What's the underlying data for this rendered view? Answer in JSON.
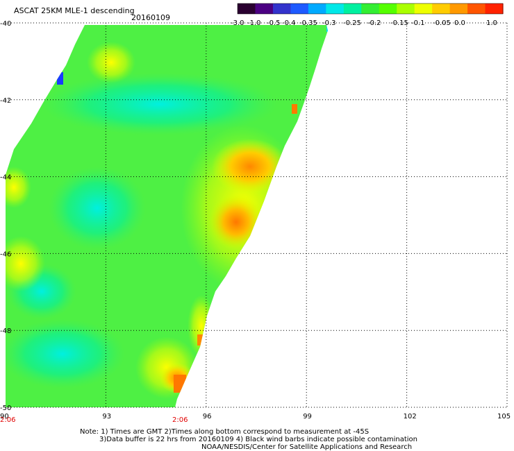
{
  "title": {
    "product": "ASCAT 25KM MLE-1 descending",
    "date": "20160109"
  },
  "colorbar": {
    "colors": [
      "#2a0030",
      "#4b0082",
      "#3333cc",
      "#1e5aff",
      "#00aaff",
      "#00e8e8",
      "#00f0a0",
      "#33ee33",
      "#55ff00",
      "#aaff00",
      "#eeff00",
      "#ffcc00",
      "#ff9900",
      "#ff5500",
      "#ff2200"
    ],
    "tick_labels": [
      "-3.0",
      "-1.0",
      "-0.5",
      "-0.4",
      "-0.35",
      "-0.3",
      "-0.25",
      "-0.2",
      "-0.15",
      "-0.1",
      "-0.05",
      "0.0",
      "1.0"
    ]
  },
  "axes": {
    "x_ticks": [
      "90",
      "93",
      "96",
      "99",
      "102",
      "105"
    ],
    "y_ticks": [
      "-40",
      "-42",
      "-44",
      "-46",
      "-48",
      "-50"
    ],
    "time_labels": [
      "2:06",
      "2:06"
    ]
  },
  "notes": [
    "Note: 1) Times are GMT 2)Times along bottom correspond to measurement at -45S",
    "3)Data buffer is 22 hrs from 20160109 4) Black wind barbs indicate possible contamination",
    "NOAA/NESDIS/Center for Satellite Applications and Research"
  ]
}
